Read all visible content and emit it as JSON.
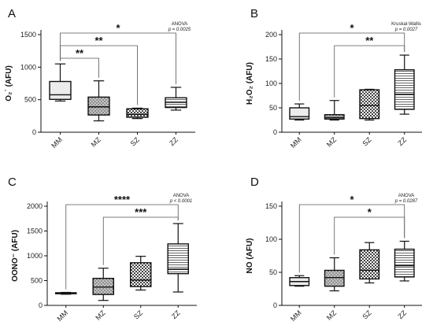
{
  "chart_data": [
    {
      "type": "boxplot",
      "panel_label": "A",
      "ylabel": "O₂˙ (AFU)",
      "categories": [
        "MM",
        "MZ",
        "SZ",
        "ZZ"
      ],
      "ylim": [
        0,
        1500
      ],
      "yticks": [
        "0",
        "500",
        "1000",
        "1500"
      ],
      "test_name": "ANOVA",
      "p_value": "p = 0.0025",
      "boxes": [
        {
          "category": "MM",
          "min": 480,
          "q1": 505,
          "median": 575,
          "q3": 780,
          "max": 1050,
          "fill": "#ececec"
        },
        {
          "category": "MZ",
          "min": 175,
          "q1": 265,
          "median": 390,
          "q3": 540,
          "max": 790,
          "fill": "#b4b4b4"
        },
        {
          "category": "SZ",
          "min": 210,
          "q1": 230,
          "median": 275,
          "q3": 360,
          "max": 370,
          "fill": "#8c8c8c"
        },
        {
          "category": "ZZ",
          "min": 340,
          "q1": 380,
          "median": 460,
          "q3": 530,
          "max": 690,
          "fill": "#d2d2d2"
        }
      ],
      "brackets": [
        {
          "from": "MM",
          "to": "ZZ",
          "label": "*"
        },
        {
          "from": "MM",
          "to": "SZ",
          "label": "**"
        },
        {
          "from": "MM",
          "to": "MZ",
          "label": "**"
        }
      ]
    },
    {
      "type": "boxplot",
      "panel_label": "B",
      "ylabel": "H₂O₂ (AFU)",
      "categories": [
        "MM",
        "MZ",
        "SZ",
        "ZZ"
      ],
      "ylim": [
        0,
        200
      ],
      "yticks": [
        "0",
        "50",
        "100",
        "150",
        "200"
      ],
      "test_name": "Kruskal-Wallis",
      "p_value": "p = 0.0027",
      "boxes": [
        {
          "category": "MM",
          "min": 25,
          "q1": 27,
          "median": 32,
          "q3": 50,
          "max": 58,
          "fill": "#ececec"
        },
        {
          "category": "MZ",
          "min": 25,
          "q1": 27,
          "median": 30,
          "q3": 36,
          "max": 65,
          "fill": "#b4b4b4"
        },
        {
          "category": "SZ",
          "min": 25,
          "q1": 28,
          "median": 55,
          "q3": 87,
          "max": 88,
          "fill": "#8c8c8c"
        },
        {
          "category": "ZZ",
          "min": 37,
          "q1": 47,
          "median": 78,
          "q3": 128,
          "max": 158,
          "fill": "#d2d2d2"
        }
      ],
      "brackets": [
        {
          "from": "MM",
          "to": "ZZ",
          "label": "*"
        },
        {
          "from": "MZ",
          "to": "ZZ",
          "label": "**"
        }
      ]
    },
    {
      "type": "boxplot",
      "panel_label": "C",
      "ylabel": "OONO⁻ (AFU)",
      "categories": [
        "MM",
        "MZ",
        "SZ",
        "ZZ"
      ],
      "ylim": [
        0,
        2000
      ],
      "yticks": [
        "0",
        "500",
        "1000",
        "1500",
        "2000"
      ],
      "test_name": "ANOVA",
      "p_value": "p < 0.0001",
      "boxes": [
        {
          "category": "MM",
          "min": 225,
          "q1": 235,
          "median": 245,
          "q3": 255,
          "max": 262,
          "fill": "#ececec"
        },
        {
          "category": "MZ",
          "min": 100,
          "q1": 220,
          "median": 370,
          "q3": 545,
          "max": 750,
          "fill": "#b4b4b4"
        },
        {
          "category": "SZ",
          "min": 310,
          "q1": 380,
          "median": 510,
          "q3": 860,
          "max": 990,
          "fill": "#8c8c8c"
        },
        {
          "category": "ZZ",
          "min": 270,
          "q1": 640,
          "median": 730,
          "q3": 1240,
          "max": 1650,
          "fill": "#d2d2d2"
        }
      ],
      "brackets": [
        {
          "from": "MM",
          "to": "ZZ",
          "label": "****"
        },
        {
          "from": "MZ",
          "to": "ZZ",
          "label": "***"
        }
      ]
    },
    {
      "type": "boxplot",
      "panel_label": "D",
      "ylabel": "NO (AFU)",
      "categories": [
        "MM",
        "MZ",
        "SZ",
        "ZZ"
      ],
      "ylim": [
        0,
        150
      ],
      "yticks": [
        "0",
        "50",
        "100",
        "150"
      ],
      "test_name": "ANOVA",
      "p_value": "p = 0.0287",
      "boxes": [
        {
          "category": "MM",
          "min": 29,
          "q1": 30,
          "median": 36,
          "q3": 42,
          "max": 45,
          "fill": "#ececec"
        },
        {
          "category": "MZ",
          "min": 22,
          "q1": 29,
          "median": 42,
          "q3": 53,
          "max": 72,
          "fill": "#b4b4b4"
        },
        {
          "category": "SZ",
          "min": 34,
          "q1": 40,
          "median": 53,
          "q3": 84,
          "max": 95,
          "fill": "#8c8c8c"
        },
        {
          "category": "ZZ",
          "min": 37,
          "q1": 43,
          "median": 60,
          "q3": 85,
          "max": 97,
          "fill": "#d2d2d2"
        }
      ],
      "brackets": [
        {
          "from": "MM",
          "to": "ZZ",
          "label": "*"
        },
        {
          "from": "MZ",
          "to": "ZZ",
          "label": "*"
        }
      ]
    }
  ]
}
